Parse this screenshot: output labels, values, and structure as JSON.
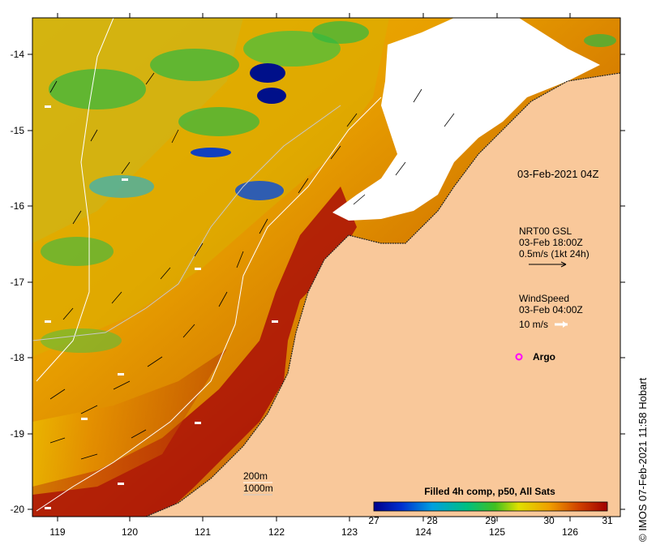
{
  "map": {
    "timestamp": "03-Feb-2021 04Z",
    "x_ticks": [
      "119",
      "120",
      "121",
      "122",
      "123",
      "124",
      "125",
      "126"
    ],
    "y_ticks": [
      "-14",
      "-15",
      "-16",
      "-17",
      "-18",
      "-19",
      "-20"
    ],
    "x_range": [
      118.65,
      126.75
    ],
    "y_range": [
      -20.15,
      -13.5
    ],
    "colors": {
      "land": "#f9c89a",
      "cloud": "#ffffff",
      "sst_low": "#00008b",
      "sst_mid": "#22bb44",
      "sst_high": "#a00000",
      "argo": "#ff00ff",
      "contour": "#ffffff"
    }
  },
  "legend": {
    "currents_title": "NRT00 GSL",
    "currents_time": "03-Feb 18:00Z",
    "currents_scale": "0.5m/s (1kt 24h)",
    "wind_title": "WindSpeed",
    "wind_time": "03-Feb 04:00Z",
    "wind_scale": "10 m/s",
    "argo_label": "Argo",
    "depth_200": "200m",
    "depth_1000": "1000m"
  },
  "colorbar": {
    "title": "Filled 4h comp, p50, All Sats",
    "ticks": [
      "27",
      "28",
      "29",
      "30",
      "31"
    ],
    "range": [
      27,
      31
    ]
  },
  "credit": "© IMOS 07-Feb-2021 11:58 Hobart"
}
